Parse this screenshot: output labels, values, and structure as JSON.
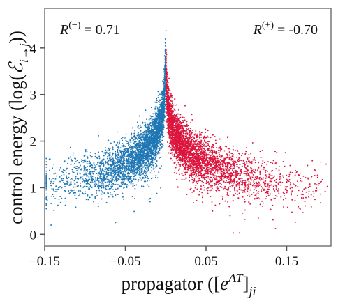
{
  "chart_data": {
    "type": "scatter",
    "xlabel_main": "propagator ([",
    "xlabel_e": "e",
    "xlabel_sup": "AT",
    "xlabel_close": "]",
    "xlabel_sub": "ji",
    "ylabel_main": "control energy (log(",
    "ylabel_script": "ℰ",
    "ylabel_sub": "i→j",
    "ylabel_close": "))",
    "xlim": [
      -0.15,
      0.205
    ],
    "ylim": [
      -0.25,
      4.85
    ],
    "xticks": [
      {
        "value": -0.15,
        "label": "−0.15"
      },
      {
        "value": -0.05,
        "label": "−0.05"
      },
      {
        "value": 0.05,
        "label": "0.05"
      },
      {
        "value": 0.15,
        "label": "0.15"
      }
    ],
    "yticks": [
      {
        "value": 0,
        "label": "0"
      },
      {
        "value": 1,
        "label": "1"
      },
      {
        "value": 2,
        "label": "2"
      },
      {
        "value": 3,
        "label": "3"
      },
      {
        "value": 4,
        "label": "4"
      }
    ],
    "grid": false,
    "annotations": [
      {
        "prefix": "R",
        "sup": "(−)",
        "suffix": " = 0.71",
        "position": "top-left"
      },
      {
        "prefix": "R",
        "sup": "(+)",
        "suffix": " = -0.70",
        "position": "top-right"
      }
    ],
    "series": [
      {
        "sign": "negative",
        "color": "#1f77b4",
        "correlation": 0.71
      },
      {
        "sign": "positive",
        "color": "#dc143c",
        "correlation": -0.7
      }
    ]
  }
}
